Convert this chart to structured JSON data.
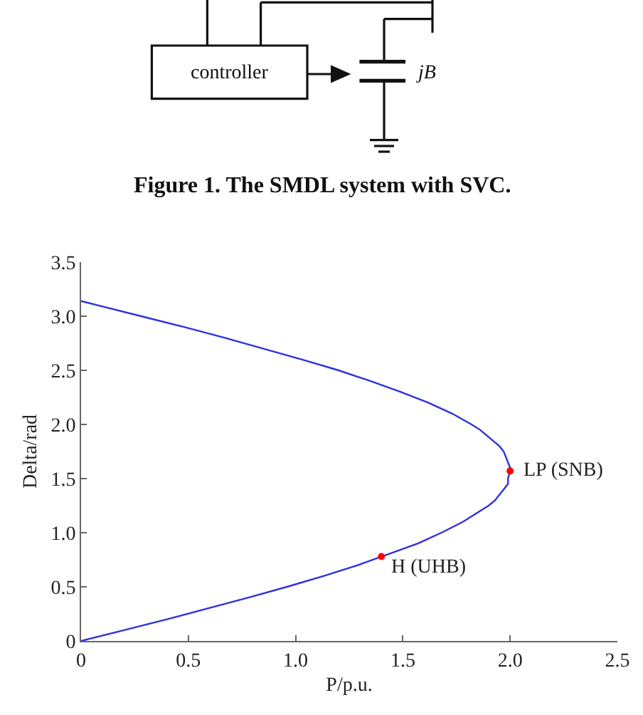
{
  "chart_data": {
    "type": "line",
    "xlabel": "P/p.u.",
    "ylabel": "Delta/rad",
    "annotations": [
      "Figure 1. The SMDL system with SVC.",
      "controller",
      "jB",
      {
        "text": "LP (SNB)",
        "x": 2.0,
        "y": 1.57
      },
      {
        "text": "H (UHB)",
        "x": 1.4,
        "y": 0.78
      }
    ],
    "series": [
      {
        "color": "#3030e0",
        "x": [
          0,
          0.2,
          0.4,
          0.59,
          0.78,
          0.96,
          1.13,
          1.29,
          1.43,
          1.57,
          1.68,
          1.78,
          1.86,
          1.9,
          1.93,
          1.95,
          1.97,
          1.99,
          1.99,
          2.0,
          2.0,
          1.99,
          1.98,
          1.97,
          1.95,
          1.92,
          1.89,
          1.86,
          1.82,
          1.73,
          1.62,
          1.49,
          1.35,
          1.2,
          1.03,
          0.85,
          0.67,
          0.48,
          0.28,
          0.08,
          0
        ],
        "values": [
          0,
          0.1,
          0.2,
          0.3,
          0.4,
          0.5,
          0.6,
          0.7,
          0.8,
          0.9,
          1.0,
          1.1,
          1.2,
          1.25,
          1.3,
          1.35,
          1.4,
          1.45,
          1.5,
          1.57,
          1.6,
          1.65,
          1.7,
          1.75,
          1.8,
          1.85,
          1.9,
          1.95,
          2.0,
          2.1,
          2.2,
          2.3,
          2.4,
          2.5,
          2.6,
          2.7,
          2.8,
          2.9,
          3.0,
          3.1,
          3.14
        ]
      },
      {
        "type": "scatter",
        "color": "#ff0000",
        "marker": "circle",
        "x": [
          2.0,
          1.4
        ],
        "values": [
          1.57,
          0.78
        ]
      }
    ],
    "xlim": [
      0,
      2.5
    ],
    "ylim": [
      0,
      3.5
    ],
    "xticks": [
      0,
      0.5,
      {
        "value": 1,
        "label": "1.0"
      },
      1.5,
      {
        "value": 2,
        "label": "2.0"
      },
      2.5
    ],
    "yticks": [
      0,
      0.5,
      {
        "value": 1,
        "label": "1.0"
      },
      1.5,
      {
        "value": 2,
        "label": "2.0"
      },
      2.5,
      {
        "value": 3,
        "label": "3.0"
      },
      3.5
    ]
  }
}
